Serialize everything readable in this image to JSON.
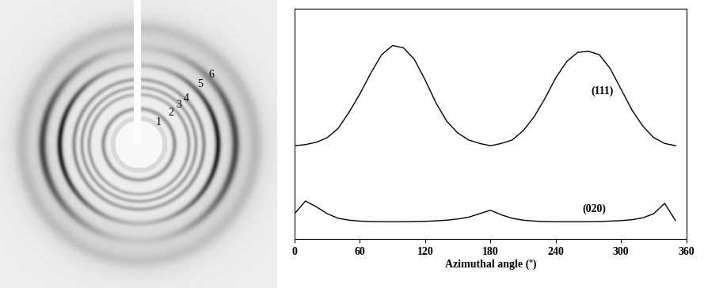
{
  "pattern": {
    "ring_labels": [
      "1",
      "2",
      "3",
      "4",
      "5",
      "6"
    ]
  },
  "chart_data": {
    "type": "line",
    "xlabel": "Azimuthal angle (º)",
    "x": [
      0,
      10,
      20,
      30,
      40,
      50,
      60,
      70,
      80,
      90,
      100,
      110,
      120,
      130,
      140,
      150,
      160,
      170,
      180,
      190,
      200,
      210,
      220,
      230,
      240,
      250,
      260,
      270,
      280,
      290,
      300,
      310,
      320,
      330,
      340,
      350
    ],
    "series": [
      {
        "color": "#000000",
        "values": [
          40.5,
          41,
          42,
          44,
          48,
          55,
          63,
          72,
          80,
          84,
          83,
          78,
          69,
          59,
          51,
          46,
          43,
          41.5,
          40.5,
          41.5,
          43,
          47,
          53,
          61,
          70,
          77,
          81,
          81.5,
          80,
          74,
          65,
          56,
          49,
          44,
          41.5,
          40.5
        ]
      },
      {
        "color": "#000000",
        "values": [
          11,
          16.5,
          14,
          11,
          9,
          8.2,
          7.8,
          7.6,
          7.5,
          7.5,
          7.5,
          7.6,
          7.7,
          7.9,
          8.2,
          8.7,
          9.5,
          11,
          12.5,
          10.5,
          9,
          8.2,
          7.8,
          7.6,
          7.5,
          7.5,
          7.5,
          7.5,
          7.6,
          7.8,
          8,
          8.4,
          9.2,
          11,
          15.5,
          8
        ]
      }
    ],
    "annotations": [
      {
        "text": "(111)",
        "x": 283,
        "y": 64
      },
      {
        "text": "(020)",
        "x": 275,
        "y": 13
      }
    ],
    "xlim": [
      0,
      360
    ],
    "xticks": [
      0,
      60,
      120,
      180,
      240,
      300,
      360
    ],
    "ylim": [
      0,
      100
    ],
    "yticks": [],
    "tick_labels": "x"
  }
}
